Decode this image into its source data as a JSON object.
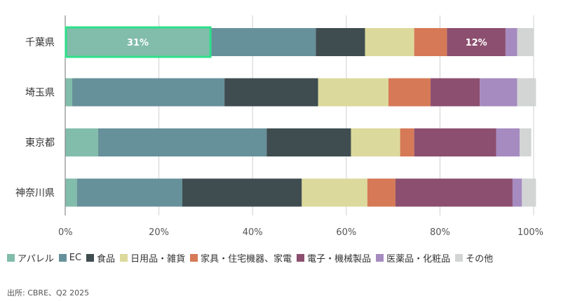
{
  "chart_data": {
    "type": "bar",
    "orientation": "horizontal",
    "stacked": "percent",
    "categories": [
      "千葉県",
      "埼玉県",
      "東京都",
      "神奈川県"
    ],
    "series": [
      {
        "name": "アパレル",
        "color": "#82bcaa",
        "values": [
          31,
          1.5,
          7,
          2.5
        ]
      },
      {
        "name": "EC",
        "color": "#67919a",
        "values": [
          22.5,
          32.5,
          36,
          22.5
        ]
      },
      {
        "name": "食品",
        "color": "#3f4d50",
        "values": [
          10.5,
          20,
          18,
          25.5
        ]
      },
      {
        "name": "日用品・雑貨",
        "color": "#dcd99c",
        "values": [
          10.5,
          15,
          10.5,
          14
        ]
      },
      {
        "name": "家具・住宅機器、家電",
        "color": "#d67957",
        "values": [
          7,
          9,
          3,
          6
        ]
      },
      {
        "name": "電子・機械製品",
        "color": "#8c4f6f",
        "values": [
          12.5,
          10.5,
          17.5,
          25
        ]
      },
      {
        "name": "医薬品・化粧品",
        "color": "#a68bc0",
        "values": [
          2.5,
          8,
          5,
          2
        ]
      },
      {
        "name": "その他",
        "color": "#d3d5d5",
        "values": [
          3.5,
          4,
          2.5,
          3
        ]
      }
    ],
    "data_labels": [
      {
        "category": "千葉県",
        "series": "アパレル",
        "text": "31%"
      },
      {
        "category": "千葉県",
        "series": "電子・機械製品",
        "text": "12%"
      }
    ],
    "highlight": {
      "category": "千葉県",
      "series": "アパレル",
      "color": "#2ee08a"
    },
    "xlim": [
      0,
      100
    ],
    "xticks": [
      "0%",
      "20%",
      "40%",
      "60%",
      "80%",
      "100%"
    ],
    "grid": true,
    "legend_position": "bottom"
  },
  "source": "出所: CBRE、Q2 2025"
}
